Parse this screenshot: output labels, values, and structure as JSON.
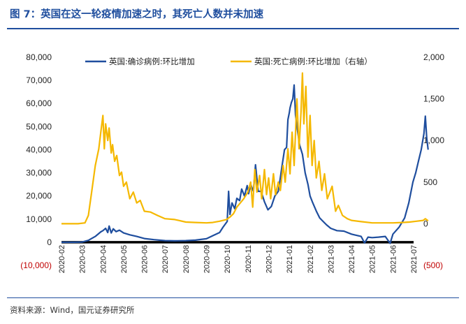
{
  "title": "图 7：英国在这一轮疫情加速之时，其死亡人数并未加速",
  "source": "资料来源：Wind，国元证券研究所",
  "colors": {
    "accent": "#1f4e9e",
    "confirmed": "#1f4e9e",
    "deaths": "#f5b800",
    "neg_label": "#c00000"
  },
  "chart_data": {
    "type": "line",
    "title": "",
    "xlabel": "",
    "ylabel": "",
    "legend_position": "top",
    "grid": false,
    "categories": [
      "2020-02",
      "2020-03",
      "2020-04",
      "2020-05",
      "2020-06",
      "2020-07",
      "2020-08",
      "2020-09",
      "2020-10",
      "2020-11",
      "2020-12",
      "2021-01",
      "2021-02",
      "2021-03",
      "2021-04",
      "2021-05",
      "2021-06",
      "2021-07"
    ],
    "ylim_left": [
      -10000,
      80000
    ],
    "ylim_right": [
      -500,
      2000
    ],
    "left_ticks": [
      "(10,000)",
      "0",
      "10,000",
      "20,000",
      "30,000",
      "40,000",
      "50,000",
      "60,000",
      "70,000",
      "80,000"
    ],
    "right_ticks": [
      "(500)",
      "0",
      "500",
      "1,000",
      "1,500",
      "2,000"
    ],
    "series": [
      {
        "name": "英国:确诊病例:环比增加",
        "axis": "left",
        "points": [
          [
            "2020-02-01",
            0
          ],
          [
            "2020-02-20",
            0
          ],
          [
            "2020-03-01",
            100
          ],
          [
            "2020-03-10",
            800
          ],
          [
            "2020-03-20",
            2500
          ],
          [
            "2020-03-28",
            4500
          ],
          [
            "2020-04-01",
            5000
          ],
          [
            "2020-04-05",
            6000
          ],
          [
            "2020-04-08",
            4200
          ],
          [
            "2020-04-10",
            7000
          ],
          [
            "2020-04-13",
            4000
          ],
          [
            "2020-04-16",
            5800
          ],
          [
            "2020-04-20",
            4600
          ],
          [
            "2020-04-25",
            5200
          ],
          [
            "2020-05-01",
            4000
          ],
          [
            "2020-05-10",
            3200
          ],
          [
            "2020-05-20",
            2500
          ],
          [
            "2020-06-01",
            1600
          ],
          [
            "2020-06-15",
            1100
          ],
          [
            "2020-07-01",
            700
          ],
          [
            "2020-07-15",
            600
          ],
          [
            "2020-08-01",
            700
          ],
          [
            "2020-08-15",
            900
          ],
          [
            "2020-09-01",
            1500
          ],
          [
            "2020-09-10",
            2800
          ],
          [
            "2020-09-20",
            4200
          ],
          [
            "2020-09-25",
            6500
          ],
          [
            "2020-10-01",
            9000
          ],
          [
            "2020-10-03",
            22000
          ],
          [
            "2020-10-05",
            12000
          ],
          [
            "2020-10-08",
            17000
          ],
          [
            "2020-10-12",
            14500
          ],
          [
            "2020-10-15",
            19000
          ],
          [
            "2020-10-19",
            18000
          ],
          [
            "2020-10-22",
            23000
          ],
          [
            "2020-10-26",
            20000
          ],
          [
            "2020-10-30",
            24500
          ],
          [
            "2020-11-02",
            21000
          ],
          [
            "2020-11-05",
            25000
          ],
          [
            "2020-11-09",
            22000
          ],
          [
            "2020-11-12",
            33500
          ],
          [
            "2020-11-16",
            22000
          ],
          [
            "2020-11-20",
            22000
          ],
          [
            "2020-11-25",
            17500
          ],
          [
            "2020-11-30",
            14000
          ],
          [
            "2020-12-05",
            15500
          ],
          [
            "2020-12-10",
            20000
          ],
          [
            "2020-12-15",
            22000
          ],
          [
            "2020-12-18",
            28000
          ],
          [
            "2020-12-21",
            34000
          ],
          [
            "2020-12-24",
            40000
          ],
          [
            "2020-12-27",
            41000
          ],
          [
            "2020-12-29",
            53000
          ],
          [
            "2020-12-31",
            56000
          ],
          [
            "2021-01-02",
            58000
          ],
          [
            "2021-01-04",
            60500
          ],
          [
            "2021-01-06",
            62000
          ],
          [
            "2021-01-08",
            68000
          ],
          [
            "2021-01-10",
            55000
          ],
          [
            "2021-01-13",
            48000
          ],
          [
            "2021-01-16",
            42000
          ],
          [
            "2021-01-20",
            38000
          ],
          [
            "2021-01-24",
            30000
          ],
          [
            "2021-01-28",
            25000
          ],
          [
            "2021-02-01",
            20000
          ],
          [
            "2021-02-05",
            17000
          ],
          [
            "2021-02-10",
            13500
          ],
          [
            "2021-02-15",
            10500
          ],
          [
            "2021-02-20",
            9000
          ],
          [
            "2021-02-25",
            7500
          ],
          [
            "2021-03-01",
            6000
          ],
          [
            "2021-03-10",
            5000
          ],
          [
            "2021-03-20",
            4800
          ],
          [
            "2021-04-01",
            3500
          ],
          [
            "2021-04-15",
            2500
          ],
          [
            "2021-04-20",
            -300
          ],
          [
            "2021-04-25",
            2200
          ],
          [
            "2021-05-01",
            2000
          ],
          [
            "2021-05-10",
            2200
          ],
          [
            "2021-05-20",
            2500
          ],
          [
            "2021-05-27",
            -500
          ],
          [
            "2021-06-01",
            3500
          ],
          [
            "2021-06-10",
            6500
          ],
          [
            "2021-06-18",
            10500
          ],
          [
            "2021-06-24",
            17000
          ],
          [
            "2021-06-30",
            26000
          ],
          [
            "2021-07-04",
            30000
          ],
          [
            "2021-07-08",
            35000
          ],
          [
            "2021-07-12",
            40000
          ],
          [
            "2021-07-16",
            47000
          ],
          [
            "2021-07-18",
            54500
          ],
          [
            "2021-07-20",
            45000
          ],
          [
            "2021-07-22",
            40000
          ]
        ]
      },
      {
        "name": "英国:死亡病例:环比增加（右轴）",
        "axis": "right",
        "points": [
          [
            "2020-02-01",
            0
          ],
          [
            "2020-02-25",
            0
          ],
          [
            "2020-03-05",
            10
          ],
          [
            "2020-03-10",
            100
          ],
          [
            "2020-03-15",
            400
          ],
          [
            "2020-03-20",
            700
          ],
          [
            "2020-03-25",
            900
          ],
          [
            "2020-03-28",
            1100
          ],
          [
            "2020-04-01",
            1300
          ],
          [
            "2020-04-03",
            900
          ],
          [
            "2020-04-05",
            1200
          ],
          [
            "2020-04-08",
            1000
          ],
          [
            "2020-04-10",
            1150
          ],
          [
            "2020-04-13",
            850
          ],
          [
            "2020-04-15",
            950
          ],
          [
            "2020-04-18",
            750
          ],
          [
            "2020-04-21",
            820
          ],
          [
            "2020-04-25",
            580
          ],
          [
            "2020-04-28",
            620
          ],
          [
            "2020-05-01",
            450
          ],
          [
            "2020-05-05",
            500
          ],
          [
            "2020-05-10",
            300
          ],
          [
            "2020-05-15",
            380
          ],
          [
            "2020-05-20",
            250
          ],
          [
            "2020-05-25",
            280
          ],
          [
            "2020-06-01",
            150
          ],
          [
            "2020-06-10",
            140
          ],
          [
            "2020-06-20",
            100
          ],
          [
            "2020-07-01",
            60
          ],
          [
            "2020-07-15",
            50
          ],
          [
            "2020-08-01",
            20
          ],
          [
            "2020-08-15",
            15
          ],
          [
            "2020-09-01",
            10
          ],
          [
            "2020-09-10",
            15
          ],
          [
            "2020-09-20",
            30
          ],
          [
            "2020-09-30",
            50
          ],
          [
            "2020-10-05",
            80
          ],
          [
            "2020-10-10",
            120
          ],
          [
            "2020-10-15",
            200
          ],
          [
            "2020-10-20",
            250
          ],
          [
            "2020-10-25",
            300
          ],
          [
            "2020-11-01",
            380
          ],
          [
            "2020-11-05",
            500
          ],
          [
            "2020-11-08",
            200
          ],
          [
            "2020-11-11",
            650
          ],
          [
            "2020-11-14",
            380
          ],
          [
            "2020-11-18",
            580
          ],
          [
            "2020-11-21",
            300
          ],
          [
            "2020-11-25",
            650
          ],
          [
            "2020-11-28",
            350
          ],
          [
            "2020-12-01",
            550
          ],
          [
            "2020-12-04",
            300
          ],
          [
            "2020-12-08",
            600
          ],
          [
            "2020-12-11",
            350
          ],
          [
            "2020-12-15",
            500
          ],
          [
            "2020-12-18",
            400
          ],
          [
            "2020-12-22",
            700
          ],
          [
            "2020-12-25",
            500
          ],
          [
            "2020-12-29",
            900
          ],
          [
            "2021-01-02",
            600
          ],
          [
            "2021-01-05",
            1100
          ],
          [
            "2021-01-08",
            700
          ],
          [
            "2021-01-12",
            1500
          ],
          [
            "2021-01-15",
            900
          ],
          [
            "2021-01-18",
            1350
          ],
          [
            "2021-01-20",
            1810
          ],
          [
            "2021-01-22",
            1200
          ],
          [
            "2021-01-25",
            1650
          ],
          [
            "2021-01-28",
            800
          ],
          [
            "2021-02-01",
            1300
          ],
          [
            "2021-02-04",
            700
          ],
          [
            "2021-02-07",
            1000
          ],
          [
            "2021-02-10",
            550
          ],
          [
            "2021-02-14",
            750
          ],
          [
            "2021-02-18",
            400
          ],
          [
            "2021-02-22",
            600
          ],
          [
            "2021-02-26",
            300
          ],
          [
            "2021-03-03",
            450
          ],
          [
            "2021-03-08",
            150
          ],
          [
            "2021-03-12",
            220
          ],
          [
            "2021-03-18",
            100
          ],
          [
            "2021-03-25",
            60
          ],
          [
            "2021-04-01",
            40
          ],
          [
            "2021-04-15",
            25
          ],
          [
            "2021-05-01",
            10
          ],
          [
            "2021-05-15",
            10
          ],
          [
            "2021-06-01",
            10
          ],
          [
            "2021-06-15",
            15
          ],
          [
            "2021-06-25",
            20
          ],
          [
            "2021-07-05",
            30
          ],
          [
            "2021-07-15",
            40
          ],
          [
            "2021-07-18",
            60
          ],
          [
            "2021-07-22",
            35
          ]
        ]
      }
    ]
  }
}
